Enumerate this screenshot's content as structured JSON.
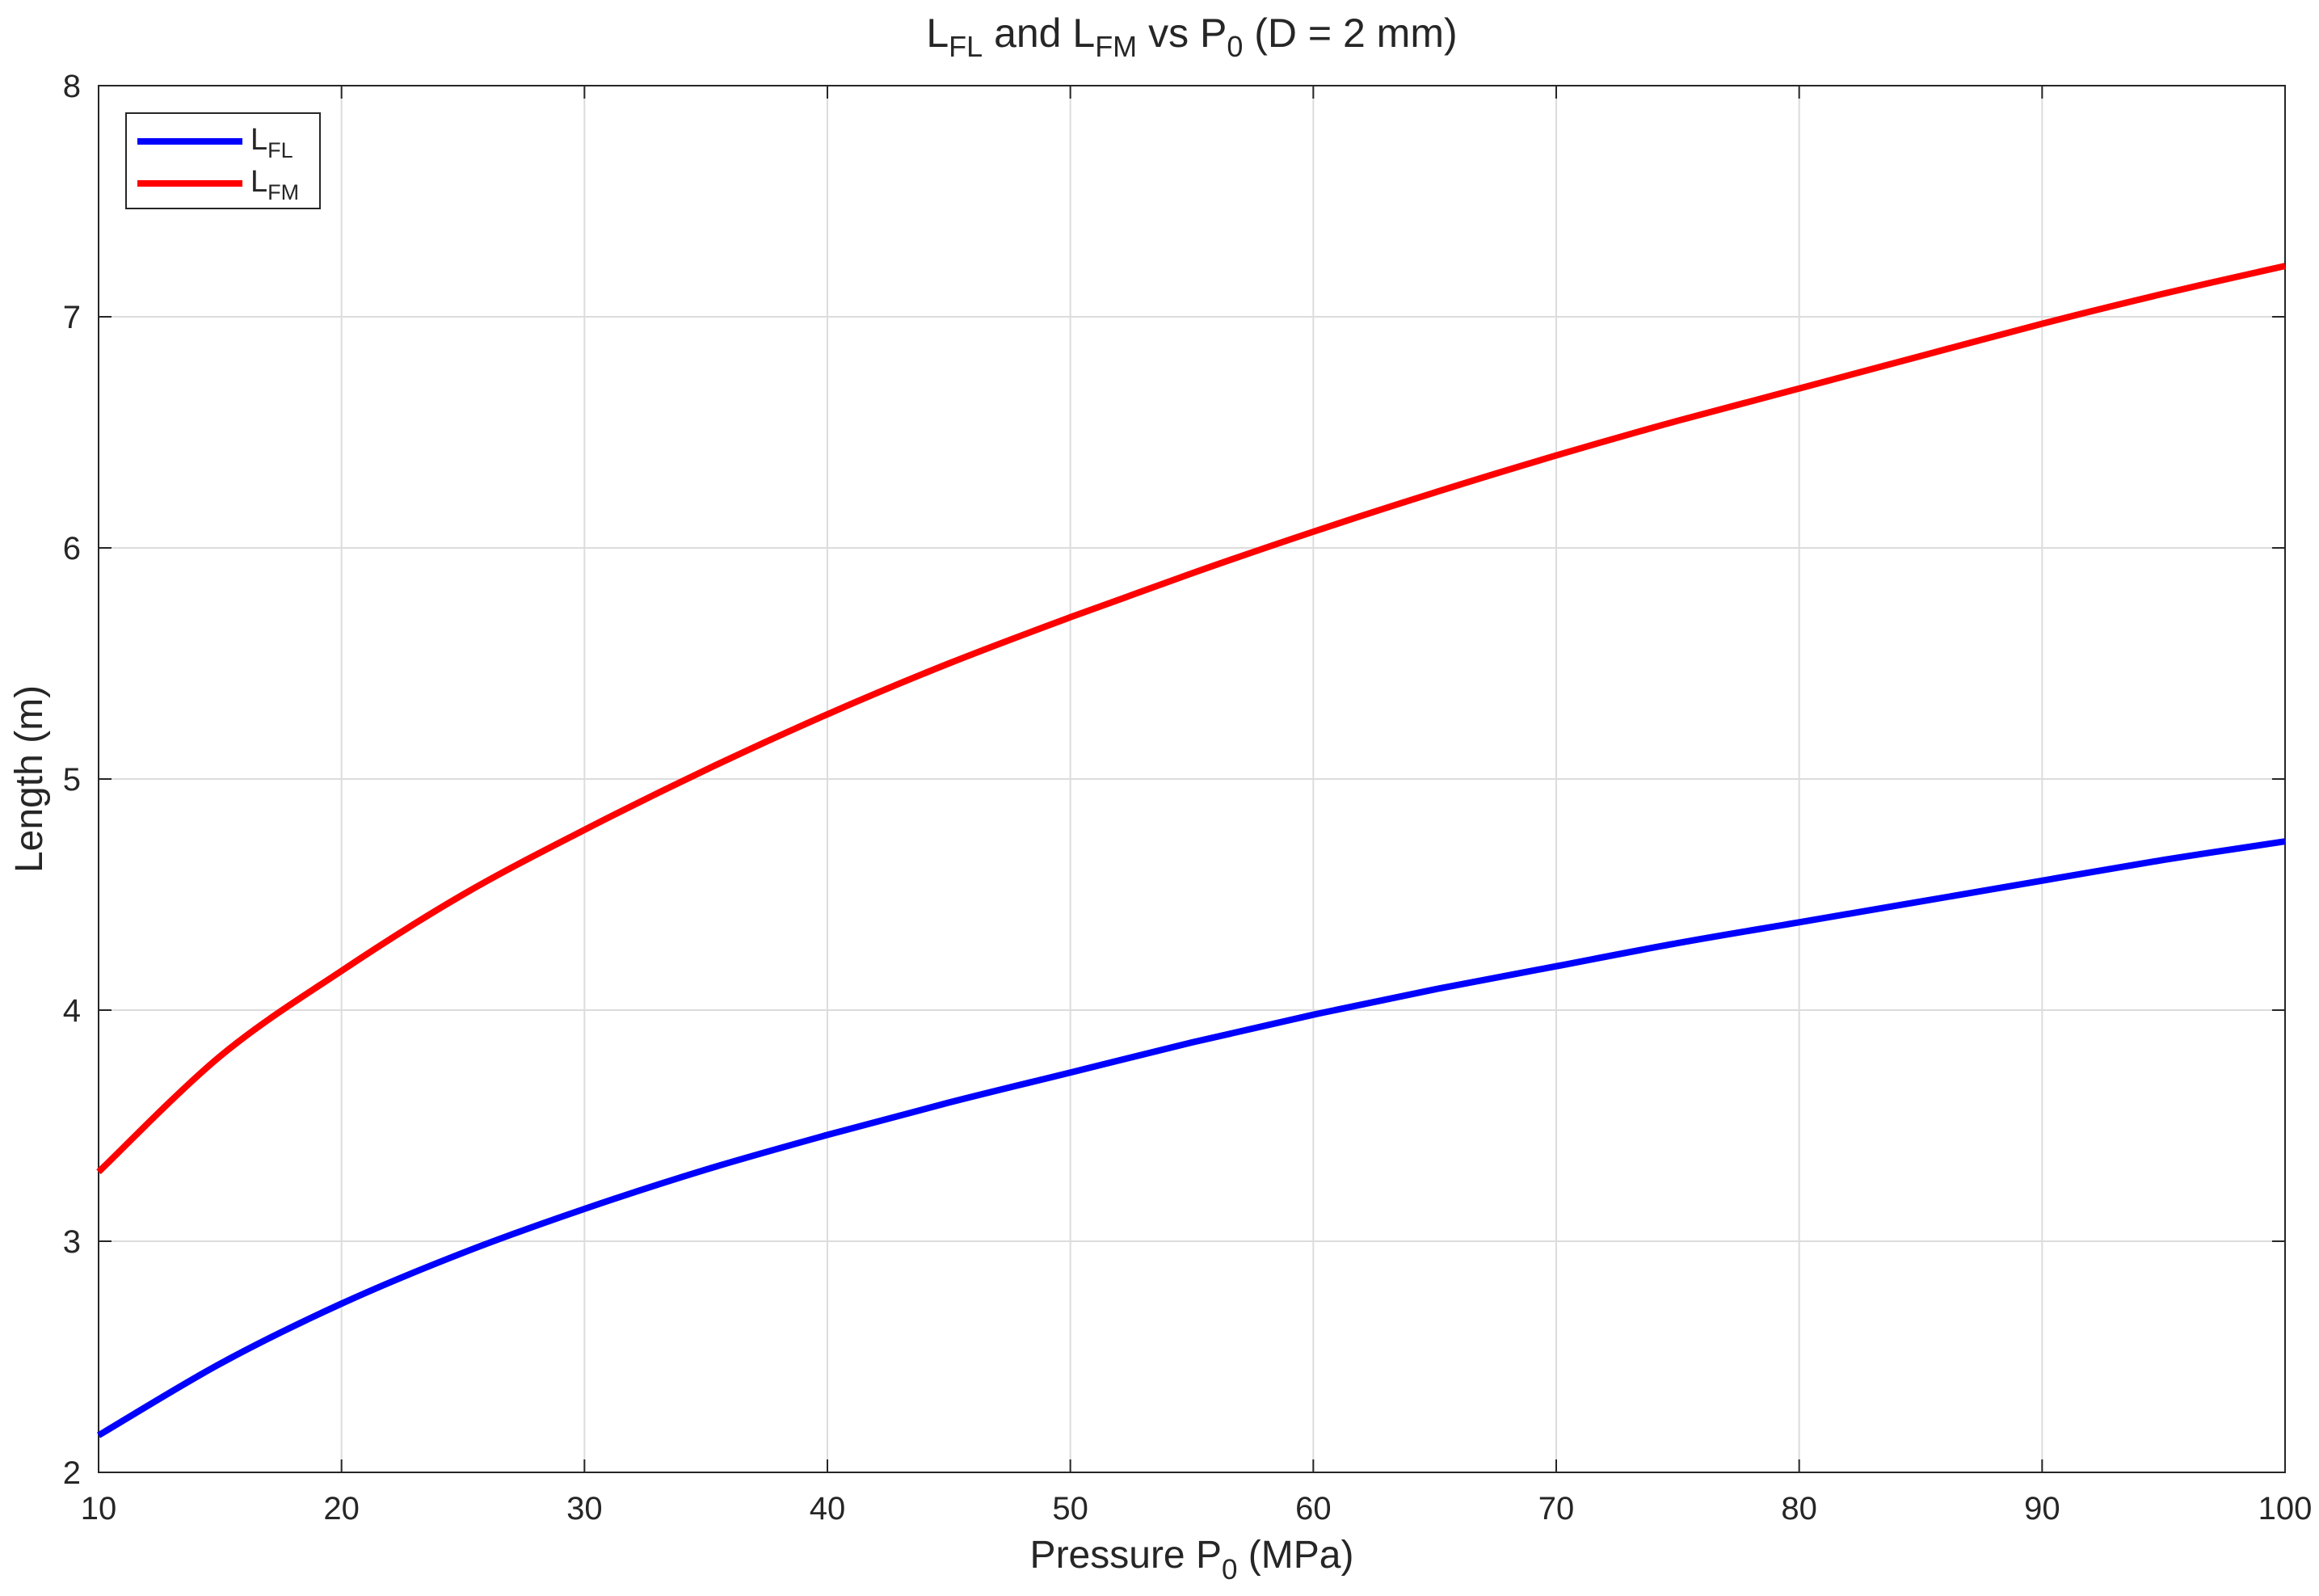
{
  "chart_data": {
    "type": "line",
    "title": {
      "parts": [
        {
          "text": "L",
          "sub": false
        },
        {
          "text": "FL",
          "sub": true
        },
        {
          "text": " and L",
          "sub": false
        },
        {
          "text": "FM",
          "sub": true
        },
        {
          "text": " vs P",
          "sub": false
        },
        {
          "text": "0",
          "sub": true
        },
        {
          "text": " (D = 2 mm)",
          "sub": false
        }
      ]
    },
    "xlabel": {
      "parts": [
        {
          "text": "Pressure P",
          "sub": false
        },
        {
          "text": "0",
          "sub": true
        },
        {
          "text": " (MPa)",
          "sub": false
        }
      ]
    },
    "ylabel": "Length (m)",
    "xlim": [
      10,
      100
    ],
    "ylim": [
      2,
      8
    ],
    "xticks": [
      10,
      20,
      30,
      40,
      50,
      60,
      70,
      80,
      90,
      100
    ],
    "yticks": [
      2,
      3,
      4,
      5,
      6,
      7,
      8
    ],
    "grid": true,
    "legend_position": "top-left",
    "x": [
      10,
      15,
      20,
      25,
      30,
      35,
      40,
      45,
      50,
      55,
      60,
      65,
      70,
      75,
      80,
      85,
      90,
      95,
      100
    ],
    "series": [
      {
        "name": "L",
        "name_sub": "FL",
        "color": "#0000ff",
        "values": [
          2.16,
          2.47,
          2.73,
          2.95,
          3.14,
          3.31,
          3.46,
          3.6,
          3.73,
          3.86,
          3.98,
          4.09,
          4.19,
          4.29,
          4.38,
          4.47,
          4.56,
          4.65,
          4.73
        ]
      },
      {
        "name": "L",
        "name_sub": "FM",
        "color": "#ff0000",
        "values": [
          3.3,
          3.8,
          4.17,
          4.5,
          4.78,
          5.04,
          5.28,
          5.5,
          5.7,
          5.89,
          6.07,
          6.24,
          6.4,
          6.55,
          6.69,
          6.83,
          6.97,
          7.1,
          7.22
        ]
      }
    ]
  }
}
